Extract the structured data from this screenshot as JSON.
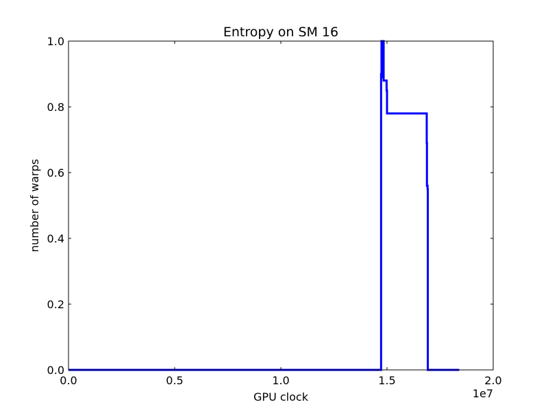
{
  "chart_data": {
    "type": "line",
    "title": "Entropy on SM 16",
    "xlabel": "GPU clock",
    "ylabel": "number of warps",
    "x_offset_label": "1e7",
    "xlim": [
      0,
      20000000
    ],
    "ylim": [
      0,
      1.0
    ],
    "grid": false,
    "legend": "none",
    "x_ticks": [
      {
        "value": 0,
        "label": "0.0"
      },
      {
        "value": 5000000,
        "label": "0.5"
      },
      {
        "value": 10000000,
        "label": "1.0"
      },
      {
        "value": 15000000,
        "label": "1.5"
      },
      {
        "value": 20000000,
        "label": "2.0"
      }
    ],
    "y_ticks": [
      {
        "value": 0,
        "label": "0.0"
      },
      {
        "value": 0.2,
        "label": "0.2"
      },
      {
        "value": 0.4,
        "label": "0.4"
      },
      {
        "value": 0.6,
        "label": "0.6"
      },
      {
        "value": 0.8,
        "label": "0.8"
      },
      {
        "value": 1.0,
        "label": "1.0"
      }
    ],
    "series": [
      {
        "color": "#0000ff",
        "x": [
          0,
          14700000,
          14720000,
          14740000,
          14760000,
          14780000,
          14800000,
          14820000,
          14840000,
          14860000,
          14960000,
          14980000,
          15000000,
          16850000,
          16870000,
          16880000,
          16900000,
          16910000,
          16920000,
          18400000
        ],
        "y": [
          0,
          0,
          0.9,
          1.0,
          0.89,
          1.0,
          0.95,
          1.0,
          0.88,
          0.88,
          0.88,
          0.85,
          0.78,
          0.78,
          0.69,
          0.56,
          0.56,
          0.55,
          0,
          0
        ]
      }
    ]
  }
}
